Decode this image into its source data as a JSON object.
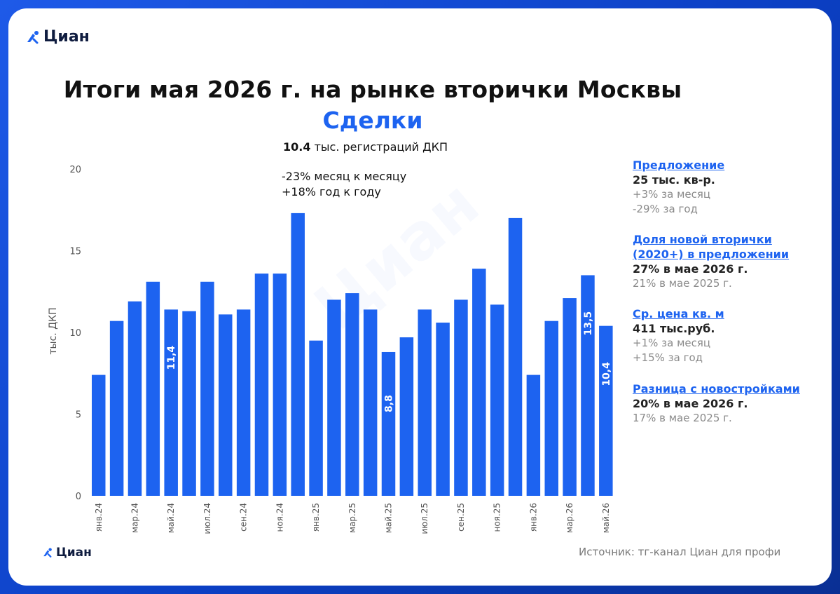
{
  "brand": {
    "name": "Циан",
    "source": "Источник: тг-канал Циан для профи"
  },
  "header": {
    "title": "Итоги мая 2026 г. на рынке вторички Москвы",
    "subtitle": "Сделки",
    "headline_value": "10.4",
    "headline_text": " тыс. регистраций ДКП",
    "delta_mom": "-23% месяц к месяцу",
    "delta_yoy": "+18% год к году"
  },
  "sidebar": [
    {
      "heading": "Предложение",
      "value": "25 тыс. кв-р.",
      "notes": [
        "+3% за месяц",
        "-29% за год"
      ]
    },
    {
      "heading": "Доля новой вторички (2020+) в предложении",
      "value": "27% в мае 2026 г.",
      "notes": [
        "21% в мае 2025 г."
      ]
    },
    {
      "heading": "Ср. цена кв. м",
      "value": "411 тыс.руб.",
      "notes": [
        "+1% за месяц",
        "+15% за год"
      ]
    },
    {
      "heading": "Разница с новостройками",
      "value": "20% в мае 2026 г.",
      "notes": [
        "17% в мае 2025 г."
      ]
    }
  ],
  "chart_data": {
    "type": "bar",
    "ylabel": "тыс. ДКП",
    "ylim": [
      0,
      20
    ],
    "yticks": [
      0,
      5,
      10,
      15,
      20
    ],
    "bar_color": "#1d63f0",
    "categories": [
      "янв.24",
      "фев.24",
      "мар.24",
      "апр.24",
      "май.24",
      "июн.24",
      "июл.24",
      "авг.24",
      "сен.24",
      "окт.24",
      "ноя.24",
      "дек.24",
      "янв.25",
      "фев.25",
      "мар.25",
      "апр.25",
      "май.25",
      "июн.25",
      "июл.25",
      "авг.25",
      "сен.25",
      "окт.25",
      "ноя.25",
      "дек.25",
      "янв.26",
      "фев.26",
      "мар.26",
      "апр.26",
      "май.26"
    ],
    "xtick_labels": [
      "янв.24",
      "",
      "мар.24",
      "",
      "май.24",
      "",
      "июл.24",
      "",
      "сен.24",
      "",
      "ноя.24",
      "",
      "янв.25",
      "",
      "мар.25",
      "",
      "май.25",
      "",
      "июл.25",
      "",
      "сен.25",
      "",
      "ноя.25",
      "",
      "янв.26",
      "",
      "мар.26",
      "",
      "май.26"
    ],
    "values": [
      7.4,
      10.7,
      11.9,
      13.1,
      11.4,
      11.3,
      13.1,
      11.1,
      11.4,
      13.6,
      13.6,
      17.3,
      9.5,
      12.0,
      12.4,
      11.4,
      8.8,
      9.7,
      11.4,
      10.6,
      12.0,
      13.9,
      11.7,
      17.0,
      7.4,
      10.7,
      12.1,
      13.5,
      10.4
    ],
    "data_labels": [
      "",
      "",
      "",
      "",
      "11,4",
      "",
      "",
      "",
      "",
      "",
      "",
      "",
      "",
      "",
      "",
      "",
      "8,8",
      "",
      "",
      "",
      "",
      "",
      "",
      "",
      "",
      "",
      "",
      "13,5",
      "10,4"
    ]
  }
}
